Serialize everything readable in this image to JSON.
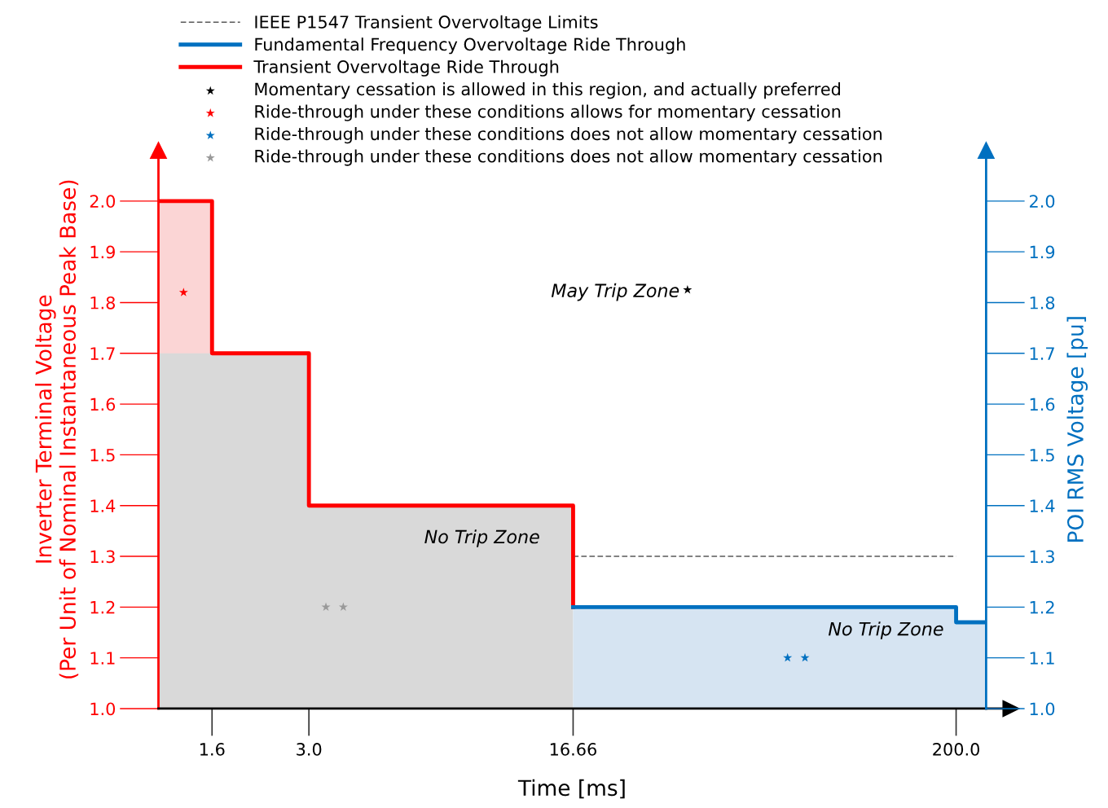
{
  "chart_data": {
    "type": "step",
    "xlabel": "Time [ms]",
    "ylabel": "Inverter Terminal Voltage\n(Per Unit of Nominal Instantaneous Peak Base)",
    "y2label": "POI RMS Voltage [pu]",
    "log": "x",
    "xlim": [
      1.13,
      243
    ],
    "xticks": [
      {
        "value": 1.6,
        "label": "1.6"
      },
      {
        "value": 3.0,
        "label": "3.0"
      },
      {
        "value": 16.66,
        "label": "16.66"
      },
      {
        "value": 200,
        "label": "200.0"
      }
    ],
    "ylim": [
      1.0,
      2.1
    ],
    "yticks": [
      {
        "value": 1.0,
        "label": "1.0"
      },
      1.1,
      1.2,
      1.3,
      1.4,
      1.5,
      1.6,
      1.7,
      1.8,
      1.9,
      {
        "value": 2.0,
        "label": "2.0"
      }
    ],
    "y2lim": [
      1.0,
      2.1
    ],
    "y2ticks": [
      {
        "value": 1.0,
        "label": "1.0"
      },
      1.1,
      1.2,
      1.3,
      1.4,
      1.5,
      1.6,
      1.7,
      1.8,
      1.9,
      {
        "value": 2.0,
        "label": "2.0"
      }
    ],
    "legend": "top",
    "grid": false,
    "series": [
      {
        "type": "area",
        "color": "#fbd5d5",
        "x": [
          1.13,
          1.6
        ],
        "values": [
          2.0,
          2.0
        ]
      },
      {
        "type": "area",
        "color": "#d9d9d9",
        "x": [
          1.13,
          1.6,
          3.0,
          16.66
        ],
        "values": [
          1.7,
          1.7,
          1.4,
          1.4
        ]
      },
      {
        "type": "area",
        "color": "#d6e4f2",
        "x": [
          16.66,
          200,
          243
        ],
        "values": [
          1.2,
          1.17,
          1.17
        ]
      },
      {
        "name": "IEEE P1547 Transient Overvoltage Limits",
        "color": "#595959",
        "line_style": "dashed",
        "x": [
          16.66,
          200
        ],
        "values": [
          1.3,
          1.3
        ]
      },
      {
        "name": "Fundamental Frequency Overvoltage Ride Through",
        "color": "#0070c0",
        "line_style": "solid",
        "axis": "y2",
        "x": [
          16.66,
          200,
          243
        ],
        "values": [
          1.2,
          1.17,
          1.17
        ]
      },
      {
        "name": "Transient Overvoltage Ride Through",
        "color": "#ff0000",
        "line_style": "solid",
        "x": [
          1.13,
          1.6,
          3.0,
          16.66,
          16.66
        ],
        "values": [
          2.0,
          1.7,
          1.4,
          1.4,
          1.2
        ]
      },
      {
        "type": "scatter",
        "marker": "star",
        "name": "Momentary cessation is allowed in this region, and actually preferred",
        "color": "#000000",
        "x": [
          35
        ],
        "values": [
          1.825
        ]
      },
      {
        "type": "scatter",
        "marker": "star",
        "name": "Ride-through under these conditions allows for momentary cessation",
        "color": "#ff0000",
        "x": [
          1.33
        ],
        "values": [
          1.82
        ]
      },
      {
        "type": "scatter",
        "marker": "star",
        "name": "Ride-through under these conditions does not allow momentary cessation",
        "color": "#0070c0",
        "x": [
          67,
          75
        ],
        "values": [
          1.1,
          1.1
        ]
      },
      {
        "type": "scatter",
        "marker": "star",
        "name": "Ride-through under these conditions does not allow momentary cessation",
        "color": "#999999",
        "x": [
          3.35,
          3.75
        ],
        "values": [
          1.2,
          1.2
        ]
      }
    ],
    "annotations": [
      "May Trip Zone",
      "No Trip Zone",
      "No Trip Zone"
    ]
  }
}
